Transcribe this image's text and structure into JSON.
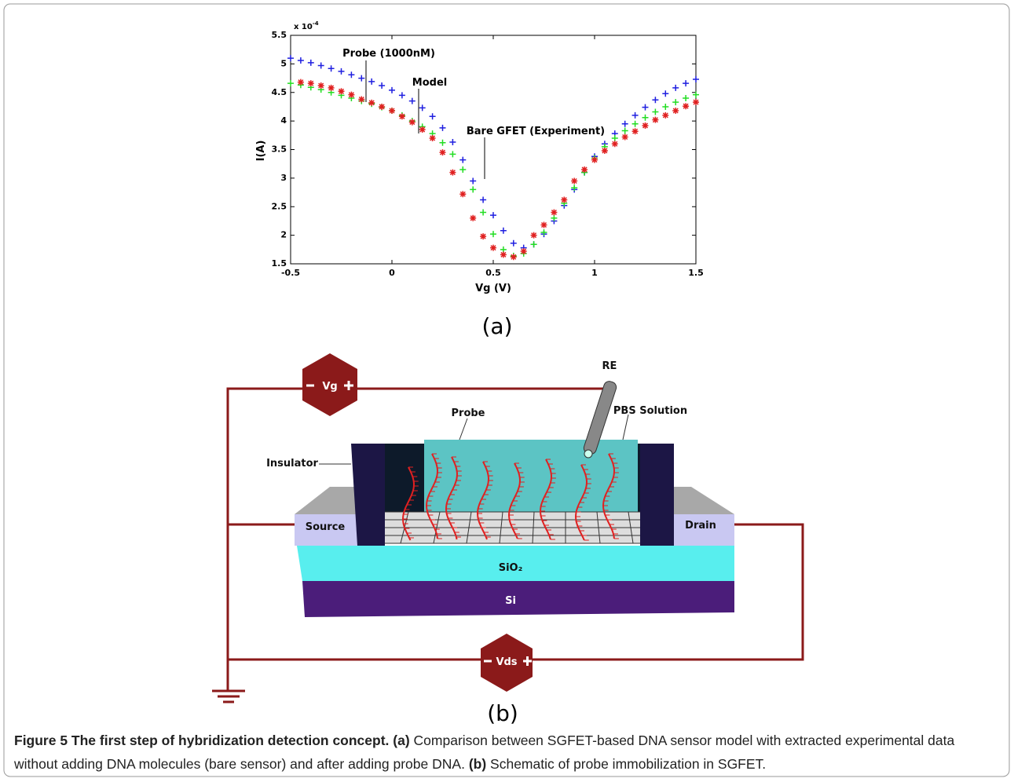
{
  "chart_data": {
    "type": "scatter",
    "xlabel": "Vg (V)",
    "ylabel": "I(A)",
    "y_multiplier": {
      "base": "x 10",
      "exponent": "-4"
    },
    "xlim": [
      -0.5,
      1.5
    ],
    "xticks": [
      -0.5,
      0,
      0.5,
      1,
      1.5
    ],
    "ylim": [
      1.5,
      5.5
    ],
    "yticks": [
      1.5,
      2,
      2.5,
      3,
      3.5,
      4,
      4.5,
      5,
      5.5
    ],
    "series": [
      {
        "name": "Probe (1000nM)",
        "color": "#1f1fe0",
        "marker": "plus",
        "x": [
          -0.5,
          -0.45,
          -0.4,
          -0.35,
          -0.3,
          -0.25,
          -0.2,
          -0.15,
          -0.1,
          -0.05,
          0,
          0.05,
          0.1,
          0.15,
          0.2,
          0.25,
          0.3,
          0.35,
          0.4,
          0.45,
          0.5,
          0.55,
          0.6,
          0.65,
          0.7,
          0.75,
          0.8,
          0.85,
          0.9,
          0.95,
          1.0,
          1.05,
          1.1,
          1.15,
          1.2,
          1.25,
          1.3,
          1.35,
          1.4,
          1.45,
          1.5
        ],
        "values": [
          5.1,
          5.06,
          5.02,
          4.97,
          4.92,
          4.87,
          4.81,
          4.75,
          4.69,
          4.62,
          4.54,
          4.45,
          4.35,
          4.23,
          4.08,
          3.88,
          3.63,
          3.32,
          2.95,
          2.62,
          2.35,
          2.08,
          1.86,
          1.78,
          1.84,
          2.02,
          2.25,
          2.52,
          2.8,
          3.1,
          3.38,
          3.6,
          3.78,
          3.95,
          4.1,
          4.24,
          4.37,
          4.48,
          4.58,
          4.66,
          4.73
        ]
      },
      {
        "name": "Model",
        "color": "#22dd22",
        "marker": "plus",
        "x": [
          -0.5,
          -0.45,
          -0.4,
          -0.35,
          -0.3,
          -0.25,
          -0.2,
          -0.15,
          -0.1,
          -0.05,
          0,
          0.05,
          0.1,
          0.15,
          0.2,
          0.25,
          0.3,
          0.35,
          0.4,
          0.45,
          0.5,
          0.55,
          0.6,
          0.65,
          0.7,
          0.75,
          0.8,
          0.85,
          0.9,
          0.95,
          1.0,
          1.05,
          1.1,
          1.15,
          1.2,
          1.25,
          1.3,
          1.35,
          1.4,
          1.45,
          1.5
        ],
        "values": [
          4.66,
          4.63,
          4.59,
          4.55,
          4.5,
          4.45,
          4.4,
          4.35,
          4.3,
          4.24,
          4.18,
          4.1,
          4.0,
          3.9,
          3.78,
          3.62,
          3.42,
          3.15,
          2.8,
          2.4,
          2.02,
          1.75,
          1.64,
          1.68,
          1.84,
          2.05,
          2.3,
          2.56,
          2.83,
          3.1,
          3.35,
          3.55,
          3.7,
          3.83,
          3.95,
          4.06,
          4.16,
          4.25,
          4.33,
          4.4,
          4.46
        ]
      },
      {
        "name": "Bare GFET (Experiment)",
        "color": "#e02020",
        "marker": "star",
        "x": [
          -0.45,
          -0.4,
          -0.35,
          -0.3,
          -0.25,
          -0.2,
          -0.15,
          -0.1,
          -0.05,
          0,
          0.05,
          0.1,
          0.15,
          0.2,
          0.25,
          0.3,
          0.35,
          0.4,
          0.45,
          0.5,
          0.55,
          0.6,
          0.65,
          0.7,
          0.75,
          0.8,
          0.85,
          0.9,
          0.95,
          1.0,
          1.05,
          1.1,
          1.15,
          1.2,
          1.25,
          1.3,
          1.35,
          1.4,
          1.45,
          1.5
        ],
        "values": [
          4.68,
          4.66,
          4.62,
          4.58,
          4.52,
          4.46,
          4.38,
          4.32,
          4.25,
          4.18,
          4.08,
          3.98,
          3.85,
          3.7,
          3.45,
          3.1,
          2.72,
          2.3,
          1.98,
          1.78,
          1.66,
          1.62,
          1.72,
          2.0,
          2.18,
          2.4,
          2.62,
          2.95,
          3.15,
          3.32,
          3.48,
          3.6,
          3.72,
          3.82,
          3.92,
          4.02,
          4.1,
          4.18,
          4.26,
          4.33
        ]
      }
    ]
  },
  "panel_labels": [
    "(a)",
    "(b)"
  ],
  "diagram": {
    "re": "RE",
    "probe": "Probe",
    "pbs": "PBS Solution",
    "insulator": "Insulator",
    "source": "Source",
    "drain": "Drain",
    "sio2": "SiO₂",
    "si": "Si",
    "vg": "Vg",
    "vds": "Vds"
  },
  "caption": {
    "title": "Figure 5 The first step of hybridization detection concept.",
    "parts": [
      {
        "label": "(a)",
        "text": "Comparison between SGFET-based DNA sensor model with extracted experimental data without adding DNA molecules (bare sensor) and after adding probe DNA."
      },
      {
        "label": "(b)",
        "text": "Schematic of probe immobilization in SGFET."
      }
    ]
  }
}
